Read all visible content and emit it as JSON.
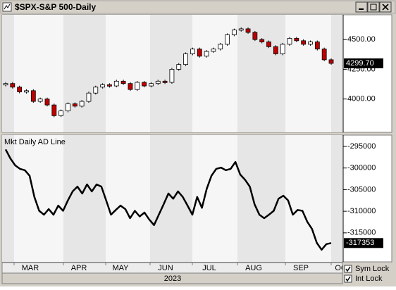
{
  "window": {
    "title": "$SPX-S&P 500-Daily"
  },
  "chart_data": [
    {
      "type": "candlestick",
      "values": [
        4130,
        4100,
        4060,
        4070,
        3980,
        4000,
        3950,
        3860,
        3900,
        3960,
        3940,
        3980,
        4050,
        4100,
        4120,
        4110,
        4150,
        4130,
        4080,
        4140,
        4110,
        4130,
        4150,
        4140,
        4250,
        4290,
        4380,
        4420,
        4360,
        4400,
        4420,
        4460,
        4540,
        4580,
        4590,
        4560,
        4500,
        4480,
        4440,
        4380,
        4460,
        4510,
        4490,
        4460,
        4480,
        4420,
        4330,
        4299.7
      ],
      "last_label": "4299.70",
      "up_color": "#ffffff",
      "down_color": "#c00000",
      "ylim": [
        3720,
        4708
      ],
      "yticks": [
        {
          "value": 4000,
          "label": "4000.00"
        },
        {
          "value": 4250,
          "label": "4250.00"
        },
        {
          "value": 4500,
          "label": "4500.00"
        }
      ]
    },
    {
      "type": "line",
      "title": "Mkt Daily AD Line",
      "color": "#000000",
      "values": [
        -295700,
        -297800,
        -299400,
        -300200,
        -300500,
        -301800,
        -306700,
        -309900,
        -310800,
        -309500,
        -310800,
        -308700,
        -309900,
        -307500,
        -305400,
        -304300,
        -305900,
        -303800,
        -305400,
        -303800,
        -304300,
        -307500,
        -310800,
        -309700,
        -308700,
        -309500,
        -311600,
        -309900,
        -311200,
        -310300,
        -311900,
        -313200,
        -310800,
        -308400,
        -305900,
        -307100,
        -305400,
        -306700,
        -308700,
        -310800,
        -306700,
        -309200,
        -304800,
        -301800,
        -300200,
        -299900,
        -300500,
        -300200,
        -298600,
        -301500,
        -302700,
        -304300,
        -308400,
        -310800,
        -311600,
        -310800,
        -309900,
        -307100,
        -306400,
        -307500,
        -310800,
        -309700,
        -309900,
        -312400,
        -314100,
        -317300,
        -318900,
        -317600,
        -317353
      ],
      "ylim": [
        -321700,
        -292400
      ],
      "yticks": [
        -295000,
        -300000,
        -305000,
        -310000,
        -315000
      ]
    }
  ],
  "x_axis": {
    "months": [
      "MAR",
      "APR",
      "MAY",
      "JUN",
      "JUL",
      "AUG",
      "SEP",
      "OCT"
    ],
    "year": "2023"
  },
  "controls": {
    "sym_lock": {
      "label": "Sym Lock",
      "checked": true
    },
    "int_lock": {
      "label": "Int Lock",
      "checked": true
    }
  }
}
